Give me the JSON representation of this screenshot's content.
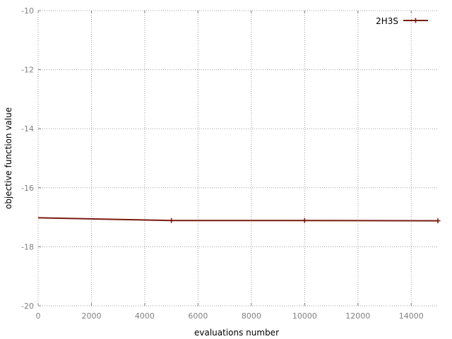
{
  "chart_data": {
    "type": "line",
    "xlabel": "evaluations number",
    "ylabel": "objective function value",
    "xlim": [
      0,
      15000
    ],
    "ylim": [
      -20,
      -10
    ],
    "xticks": [
      0,
      2000,
      4000,
      6000,
      8000,
      10000,
      12000,
      14000
    ],
    "yticks": [
      -20,
      -18,
      -16,
      -14,
      -12,
      -10
    ],
    "grid": true,
    "legend_position": "top-right",
    "series": [
      {
        "name": "2H3S",
        "color": "#7a1a10",
        "marker": "plus",
        "x": [
          0,
          5000,
          10000,
          15000
        ],
        "y": [
          -17.02,
          -17.11,
          -17.11,
          -17.12
        ],
        "marker_x": [
          5000,
          10000,
          15000
        ]
      }
    ]
  }
}
